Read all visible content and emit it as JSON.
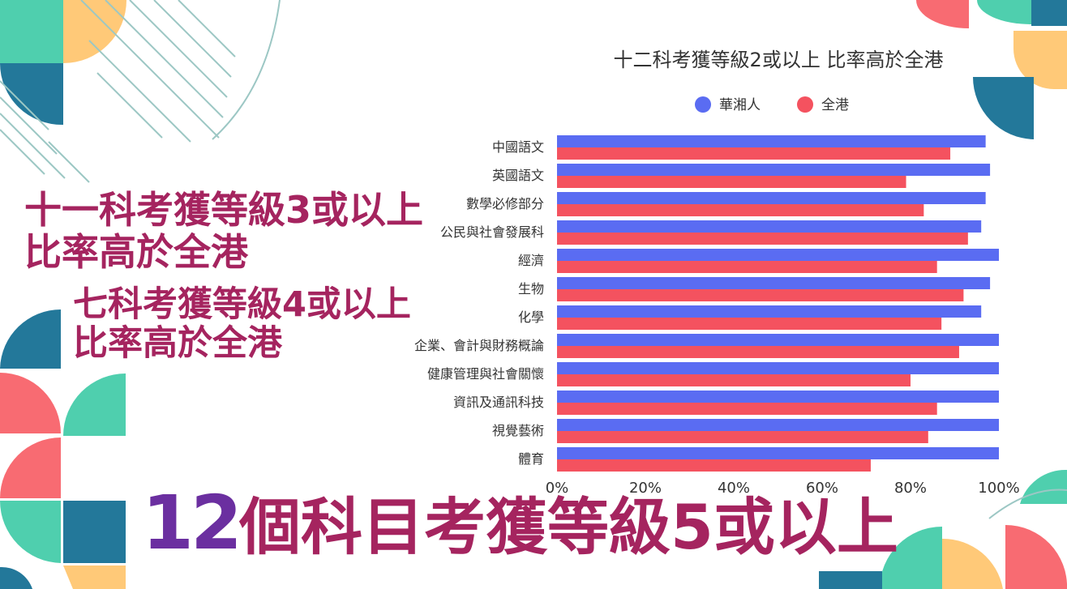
{
  "headlines": {
    "line1a": "十一科考獲等級3或以上",
    "line1b": "比率高於全港",
    "line2a": "七科考獲等級4或以上",
    "line2b": "比率高於全港",
    "line3_number": "12",
    "line3_text": "個科目考獲等級5或以上"
  },
  "colors": {
    "series1": "#5a6cf2",
    "series2": "#f4525f",
    "headline": "#a5245f",
    "headline_number": "#6b2fa0",
    "teal": "#4fcfae",
    "navy": "#23789a",
    "yellow": "#ffc978",
    "coral": "#f86b72"
  },
  "chart_data": {
    "type": "bar",
    "orientation": "horizontal",
    "title": "十二科考獲等級2或以上 比率高於全港",
    "categories": [
      "中國語文",
      "英國語文",
      "數學必修部分",
      "公民與社會發展科",
      "經濟",
      "生物",
      "化學",
      "企業、會計與財務概論",
      "健康管理與社會關懷",
      "資訊及通訊科技",
      "視覺藝術",
      "體育"
    ],
    "series": [
      {
        "name": "華湘人",
        "values": [
          97,
          98,
          97,
          96,
          100,
          98,
          96,
          100,
          100,
          100,
          100,
          100
        ]
      },
      {
        "name": "全港",
        "values": [
          89,
          79,
          83,
          93,
          86,
          92,
          87,
          91,
          80,
          86,
          84,
          71
        ]
      }
    ],
    "xlim": [
      0,
      100
    ],
    "xticks": [
      "0%",
      "20%",
      "40%",
      "60%",
      "80%",
      "100%"
    ],
    "legend_position": "top-center",
    "grid": false
  }
}
